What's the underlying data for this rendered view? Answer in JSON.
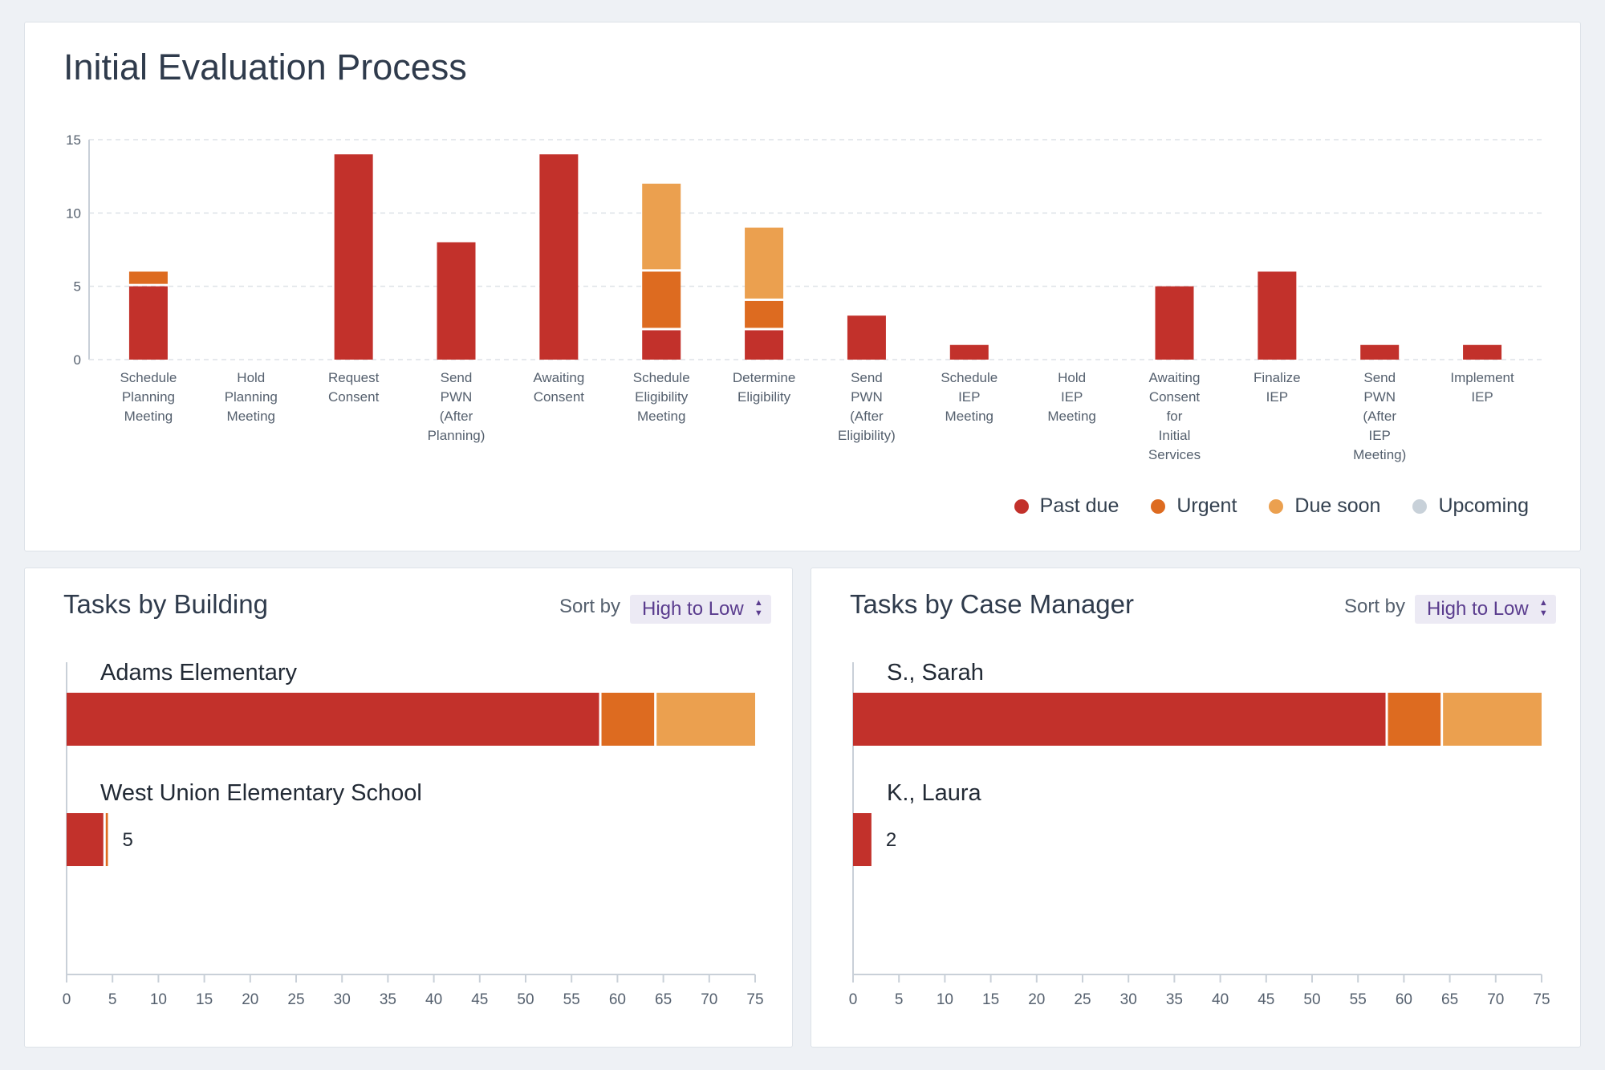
{
  "colors": {
    "past_due": "#c2312b",
    "urgent": "#dd6b20",
    "due_soon": "#eba04f",
    "upcoming": "#c8d1d9"
  },
  "evaluation": {
    "title": "Initial Evaluation Process"
  },
  "legend": {
    "past_due": "Past due",
    "urgent": "Urgent",
    "due_soon": "Due soon",
    "upcoming": "Upcoming"
  },
  "building": {
    "title": "Tasks by Building",
    "sort_label": "Sort by",
    "sort_value": "High to Low"
  },
  "case_manager": {
    "title": "Tasks by Case Manager",
    "sort_label": "Sort by",
    "sort_value": "High to Low"
  },
  "chart_data": [
    {
      "type": "bar",
      "stacked": true,
      "orientation": "vertical",
      "title": "Initial Evaluation Process",
      "categories": [
        [
          "Schedule",
          "Planning",
          "Meeting"
        ],
        [
          "Hold",
          "Planning",
          "Meeting"
        ],
        [
          "Request",
          "Consent"
        ],
        [
          "Send",
          "PWN",
          "(After",
          "Planning)"
        ],
        [
          "Awaiting",
          "Consent"
        ],
        [
          "Schedule",
          "Eligibility",
          "Meeting"
        ],
        [
          "Determine",
          "Eligibility"
        ],
        [
          "Send",
          "PWN",
          "(After",
          "Eligibility)"
        ],
        [
          "Schedule",
          "IEP",
          "Meeting"
        ],
        [
          "Hold",
          "IEP",
          "Meeting"
        ],
        [
          "Awaiting",
          "Consent",
          "for",
          "Initial",
          "Services"
        ],
        [
          "Finalize",
          "IEP"
        ],
        [
          "Send",
          "PWN",
          "(After",
          "IEP",
          "Meeting)"
        ],
        [
          "Implement",
          "IEP"
        ]
      ],
      "series": [
        {
          "name": "Past due",
          "values": [
            5,
            0,
            14,
            8,
            14,
            2,
            2,
            3,
            1,
            0,
            5,
            6,
            1,
            1
          ]
        },
        {
          "name": "Urgent",
          "values": [
            1,
            0,
            0,
            0,
            0,
            4,
            2,
            0,
            0,
            0,
            0,
            0,
            0,
            0
          ]
        },
        {
          "name": "Due soon",
          "values": [
            0,
            0,
            0,
            0,
            0,
            6,
            5,
            0,
            0,
            0,
            0,
            0,
            0,
            0
          ]
        },
        {
          "name": "Upcoming",
          "values": [
            0,
            0,
            0,
            0,
            0,
            0,
            0,
            0,
            0,
            0,
            0,
            0,
            0,
            0
          ]
        }
      ],
      "ylim": [
        0,
        15
      ],
      "yticks": [
        0,
        5,
        10,
        15
      ],
      "legend_position": "bottom-right"
    },
    {
      "type": "bar",
      "stacked": true,
      "orientation": "horizontal",
      "title": "Tasks by Building",
      "categories": [
        "Adams Elementary",
        "West Union Elementary School"
      ],
      "series": [
        {
          "name": "Past due",
          "values": [
            58,
            4
          ]
        },
        {
          "name": "Urgent",
          "values": [
            6,
            0.5
          ]
        },
        {
          "name": "Due soon",
          "values": [
            11,
            0
          ]
        }
      ],
      "labels": [
        "",
        "5"
      ],
      "xlim": [
        0,
        75
      ],
      "xticks": [
        0,
        5,
        10,
        15,
        20,
        25,
        30,
        35,
        40,
        45,
        50,
        55,
        60,
        65,
        70,
        75
      ]
    },
    {
      "type": "bar",
      "stacked": true,
      "orientation": "horizontal",
      "title": "Tasks by Case Manager",
      "categories": [
        "S., Sarah",
        "K., Laura"
      ],
      "series": [
        {
          "name": "Past due",
          "values": [
            58,
            2
          ]
        },
        {
          "name": "Urgent",
          "values": [
            6,
            0
          ]
        },
        {
          "name": "Due soon",
          "values": [
            11,
            0
          ]
        }
      ],
      "labels": [
        "",
        "2"
      ],
      "xlim": [
        0,
        75
      ],
      "xticks": [
        0,
        5,
        10,
        15,
        20,
        25,
        30,
        35,
        40,
        45,
        50,
        55,
        60,
        65,
        70,
        75
      ]
    }
  ]
}
